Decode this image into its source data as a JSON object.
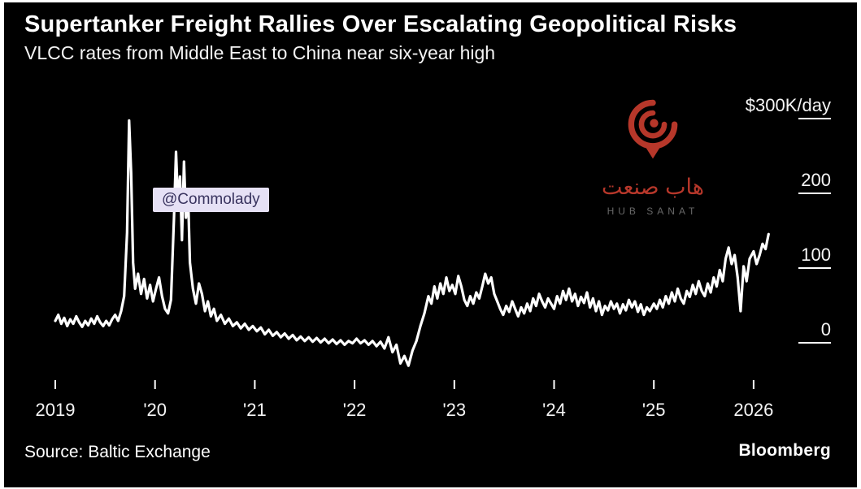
{
  "header": {
    "title": "Supertanker Freight Rallies Over Escalating Geopolitical Risks",
    "subtitle": "VLCC rates from Middle East to China near six-year high"
  },
  "watermark": {
    "handle": "@Commolady"
  },
  "logo": {
    "arabic": "هاب صنعت",
    "latin": "HUB SANAT"
  },
  "footer": {
    "source": "Source: Baltic Exchange",
    "brand": "Bloomberg"
  },
  "chart_data": {
    "type": "line",
    "title": "Supertanker Freight Rallies Over Escalating Geopolitical Risks",
    "subtitle": "VLCC rates from Middle East to China near six-year high",
    "unit": "$K/day",
    "y_ticks": [
      "$300K/day",
      "200",
      "100",
      "0"
    ],
    "y_tick_values": [
      300,
      200,
      100,
      0
    ],
    "x_ticks": [
      "2019",
      "'20",
      "'21",
      "'22",
      "'23",
      "'24",
      "'25",
      "2026"
    ],
    "x_tick_values": [
      2019,
      2020,
      2021,
      2022,
      2023,
      2024,
      2025,
      2026
    ],
    "xlim": [
      2018.95,
      2026.35
    ],
    "ylim": [
      -60,
      310
    ],
    "grid": false,
    "legend": "none",
    "colors": {
      "line": "#ffffff",
      "background": "#000000",
      "logo_red": "#c03a2d",
      "watermark_bg": "#e6e1f5"
    },
    "series": [
      {
        "name": "VLCC rate Middle East to China ($K/day)",
        "points": [
          [
            2019.0,
            12
          ],
          [
            2019.03,
            20
          ],
          [
            2019.06,
            8
          ],
          [
            2019.09,
            16
          ],
          [
            2019.12,
            5
          ],
          [
            2019.15,
            14
          ],
          [
            2019.18,
            8
          ],
          [
            2019.21,
            18
          ],
          [
            2019.24,
            10
          ],
          [
            2019.27,
            4
          ],
          [
            2019.3,
            12
          ],
          [
            2019.33,
            6
          ],
          [
            2019.36,
            15
          ],
          [
            2019.39,
            8
          ],
          [
            2019.42,
            18
          ],
          [
            2019.45,
            10
          ],
          [
            2019.48,
            5
          ],
          [
            2019.51,
            12
          ],
          [
            2019.54,
            6
          ],
          [
            2019.57,
            14
          ],
          [
            2019.6,
            20
          ],
          [
            2019.63,
            12
          ],
          [
            2019.66,
            25
          ],
          [
            2019.69,
            45
          ],
          [
            2019.72,
            130
          ],
          [
            2019.74,
            280
          ],
          [
            2019.76,
            210
          ],
          [
            2019.78,
            90
          ],
          [
            2019.8,
            55
          ],
          [
            2019.83,
            75
          ],
          [
            2019.86,
            48
          ],
          [
            2019.89,
            68
          ],
          [
            2019.92,
            42
          ],
          [
            2019.95,
            60
          ],
          [
            2019.98,
            38
          ],
          [
            2020.01,
            55
          ],
          [
            2020.04,
            70
          ],
          [
            2020.07,
            45
          ],
          [
            2020.1,
            28
          ],
          [
            2020.13,
            22
          ],
          [
            2020.16,
            40
          ],
          [
            2020.19,
            150
          ],
          [
            2020.21,
            238
          ],
          [
            2020.23,
            170
          ],
          [
            2020.25,
            205
          ],
          [
            2020.27,
            120
          ],
          [
            2020.29,
            225
          ],
          [
            2020.31,
            150
          ],
          [
            2020.33,
            185
          ],
          [
            2020.35,
            90
          ],
          [
            2020.38,
            55
          ],
          [
            2020.41,
            35
          ],
          [
            2020.44,
            62
          ],
          [
            2020.47,
            48
          ],
          [
            2020.5,
            25
          ],
          [
            2020.53,
            38
          ],
          [
            2020.56,
            18
          ],
          [
            2020.59,
            28
          ],
          [
            2020.62,
            12
          ],
          [
            2020.66,
            20
          ],
          [
            2020.7,
            8
          ],
          [
            2020.74,
            15
          ],
          [
            2020.78,
            5
          ],
          [
            2020.82,
            10
          ],
          [
            2020.86,
            2
          ],
          [
            2020.9,
            8
          ],
          [
            2020.94,
            0
          ],
          [
            2020.98,
            5
          ],
          [
            2021.02,
            -2
          ],
          [
            2021.06,
            3
          ],
          [
            2021.1,
            -6
          ],
          [
            2021.14,
            0
          ],
          [
            2021.18,
            -8
          ],
          [
            2021.22,
            -3
          ],
          [
            2021.26,
            -10
          ],
          [
            2021.3,
            -5
          ],
          [
            2021.34,
            -12
          ],
          [
            2021.38,
            -7
          ],
          [
            2021.42,
            -14
          ],
          [
            2021.46,
            -9
          ],
          [
            2021.5,
            -15
          ],
          [
            2021.54,
            -10
          ],
          [
            2021.58,
            -16
          ],
          [
            2021.62,
            -11
          ],
          [
            2021.66,
            -17
          ],
          [
            2021.7,
            -12
          ],
          [
            2021.74,
            -18
          ],
          [
            2021.78,
            -13
          ],
          [
            2021.82,
            -19
          ],
          [
            2021.86,
            -14
          ],
          [
            2021.9,
            -20
          ],
          [
            2021.94,
            -15
          ],
          [
            2021.98,
            -18
          ],
          [
            2022.02,
            -12
          ],
          [
            2022.06,
            -18
          ],
          [
            2022.1,
            -14
          ],
          [
            2022.14,
            -20
          ],
          [
            2022.18,
            -15
          ],
          [
            2022.22,
            -22
          ],
          [
            2022.26,
            -16
          ],
          [
            2022.3,
            -25
          ],
          [
            2022.34,
            -10
          ],
          [
            2022.38,
            -30
          ],
          [
            2022.42,
            -20
          ],
          [
            2022.46,
            -45
          ],
          [
            2022.5,
            -35
          ],
          [
            2022.54,
            -48
          ],
          [
            2022.58,
            -28
          ],
          [
            2022.62,
            -15
          ],
          [
            2022.66,
            5
          ],
          [
            2022.7,
            22
          ],
          [
            2022.74,
            45
          ],
          [
            2022.77,
            35
          ],
          [
            2022.8,
            58
          ],
          [
            2022.83,
            42
          ],
          [
            2022.86,
            62
          ],
          [
            2022.89,
            48
          ],
          [
            2022.92,
            70
          ],
          [
            2022.95,
            52
          ],
          [
            2022.98,
            60
          ],
          [
            2023.01,
            48
          ],
          [
            2023.04,
            72
          ],
          [
            2023.07,
            58
          ],
          [
            2023.1,
            40
          ],
          [
            2023.13,
            32
          ],
          [
            2023.16,
            45
          ],
          [
            2023.19,
            35
          ],
          [
            2023.22,
            50
          ],
          [
            2023.25,
            42
          ],
          [
            2023.28,
            58
          ],
          [
            2023.31,
            75
          ],
          [
            2023.34,
            62
          ],
          [
            2023.37,
            70
          ],
          [
            2023.4,
            48
          ],
          [
            2023.43,
            38
          ],
          [
            2023.46,
            28
          ],
          [
            2023.49,
            20
          ],
          [
            2023.52,
            32
          ],
          [
            2023.55,
            24
          ],
          [
            2023.58,
            38
          ],
          [
            2023.61,
            28
          ],
          [
            2023.64,
            18
          ],
          [
            2023.67,
            30
          ],
          [
            2023.7,
            22
          ],
          [
            2023.73,
            35
          ],
          [
            2023.76,
            25
          ],
          [
            2023.79,
            42
          ],
          [
            2023.82,
            32
          ],
          [
            2023.85,
            48
          ],
          [
            2023.88,
            38
          ],
          [
            2023.91,
            30
          ],
          [
            2023.94,
            42
          ],
          [
            2023.97,
            35
          ],
          [
            2024.0,
            28
          ],
          [
            2024.03,
            45
          ],
          [
            2024.06,
            35
          ],
          [
            2024.09,
            52
          ],
          [
            2024.12,
            40
          ],
          [
            2024.15,
            55
          ],
          [
            2024.18,
            38
          ],
          [
            2024.21,
            48
          ],
          [
            2024.24,
            32
          ],
          [
            2024.27,
            44
          ],
          [
            2024.3,
            36
          ],
          [
            2024.33,
            50
          ],
          [
            2024.36,
            30
          ],
          [
            2024.39,
            42
          ],
          [
            2024.42,
            25
          ],
          [
            2024.45,
            38
          ],
          [
            2024.48,
            20
          ],
          [
            2024.51,
            32
          ],
          [
            2024.54,
            26
          ],
          [
            2024.57,
            38
          ],
          [
            2024.6,
            28
          ],
          [
            2024.63,
            35
          ],
          [
            2024.66,
            22
          ],
          [
            2024.69,
            34
          ],
          [
            2024.72,
            26
          ],
          [
            2024.75,
            40
          ],
          [
            2024.78,
            30
          ],
          [
            2024.81,
            38
          ],
          [
            2024.84,
            24
          ],
          [
            2024.87,
            34
          ],
          [
            2024.9,
            20
          ],
          [
            2024.93,
            30
          ],
          [
            2024.96,
            25
          ],
          [
            2025.0,
            35
          ],
          [
            2025.03,
            28
          ],
          [
            2025.06,
            40
          ],
          [
            2025.09,
            30
          ],
          [
            2025.12,
            45
          ],
          [
            2025.15,
            35
          ],
          [
            2025.18,
            50
          ],
          [
            2025.21,
            38
          ],
          [
            2025.24,
            55
          ],
          [
            2025.27,
            42
          ],
          [
            2025.3,
            35
          ],
          [
            2025.33,
            52
          ],
          [
            2025.36,
            44
          ],
          [
            2025.39,
            60
          ],
          [
            2025.42,
            48
          ],
          [
            2025.45,
            65
          ],
          [
            2025.48,
            52
          ],
          [
            2025.51,
            45
          ],
          [
            2025.54,
            62
          ],
          [
            2025.57,
            50
          ],
          [
            2025.6,
            70
          ],
          [
            2025.63,
            58
          ],
          [
            2025.66,
            80
          ],
          [
            2025.69,
            65
          ],
          [
            2025.72,
            95
          ],
          [
            2025.75,
            110
          ],
          [
            2025.78,
            88
          ],
          [
            2025.81,
            100
          ],
          [
            2025.84,
            70
          ],
          [
            2025.87,
            25
          ],
          [
            2025.9,
            85
          ],
          [
            2025.93,
            65
          ],
          [
            2025.96,
            95
          ],
          [
            2026.0,
            105
          ],
          [
            2026.03,
            88
          ],
          [
            2026.06,
            100
          ],
          [
            2026.09,
            115
          ],
          [
            2026.12,
            108
          ],
          [
            2026.15,
            128
          ]
        ]
      }
    ]
  }
}
